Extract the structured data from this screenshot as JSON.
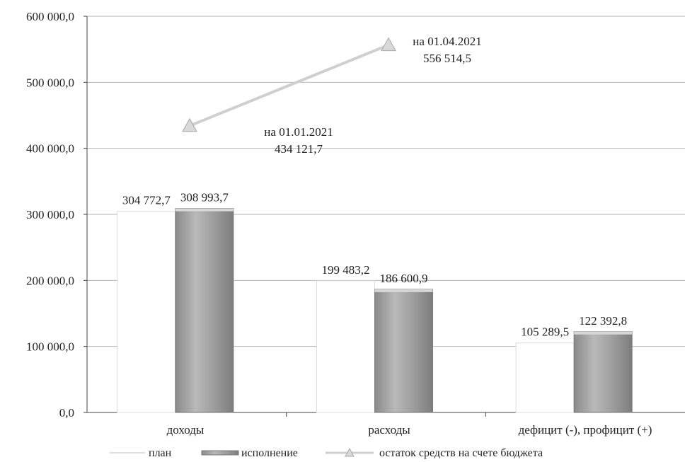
{
  "chart_data": {
    "type": "bar",
    "categories": [
      "доходы",
      "расходы",
      "дефицит (-), профицит (+)"
    ],
    "series": [
      {
        "name": "план",
        "values": [
          304772.7,
          199483.2,
          105289.5
        ],
        "labels": [
          "304 772,7",
          "199 483,2",
          "105 289,5"
        ],
        "color": "#ffffff"
      },
      {
        "name": "исполнение",
        "values": [
          308993.7,
          186600.9,
          122392.8
        ],
        "labels": [
          "308 993,7",
          "186 600,9",
          "122 392,8"
        ],
        "color": "#a8a8a8"
      }
    ],
    "line_series": {
      "name": "остаток средств на счете бюджета",
      "color": "#cfcfcf",
      "points": [
        {
          "date_label": "на 01.01.2021",
          "value": 434121.7,
          "value_label": "434 121,7"
        },
        {
          "date_label": "на 01.04.2021",
          "value": 556514.5,
          "value_label": "556 514,5"
        }
      ]
    },
    "ylim": [
      0,
      600000
    ],
    "yticks": [
      0,
      100000,
      200000,
      300000,
      400000,
      500000,
      600000
    ],
    "ytick_labels": [
      "0,0",
      "100 000,0",
      "200 000,0",
      "300 000,0",
      "400 000,0",
      "500 000,0",
      "600 000,0"
    ],
    "grid": true,
    "legend_position": "bottom"
  }
}
